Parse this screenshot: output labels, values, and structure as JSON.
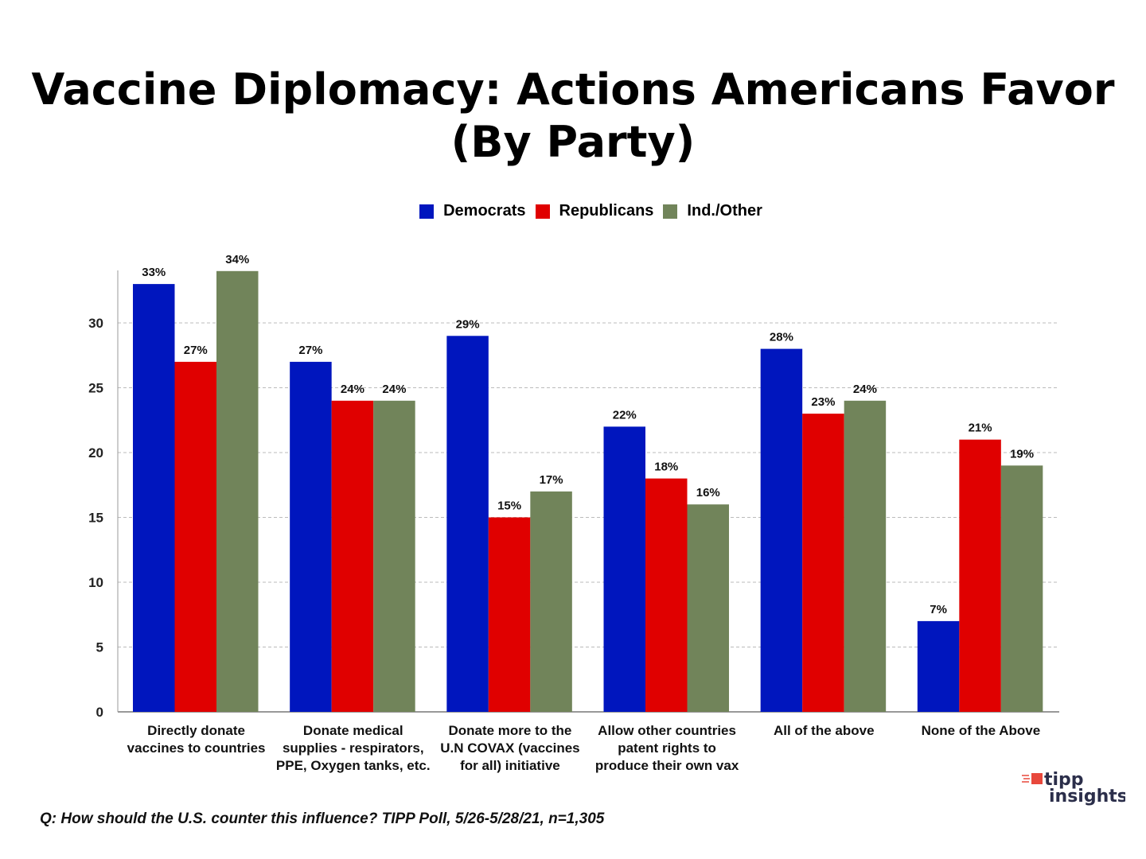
{
  "chart_data": {
    "type": "bar",
    "title": "Vaccine Diplomacy:  Actions Americans Favor",
    "subtitle": "(By Party)",
    "categories": [
      [
        "Directly donate",
        "vaccines to countries"
      ],
      [
        "Donate medical",
        "supplies - respirators,",
        "PPE, Oxygen tanks, etc."
      ],
      [
        "Donate more to the",
        "U.N COVAX (vaccines",
        "for all) initiative"
      ],
      [
        "Allow other countries",
        "patent rights to",
        "produce their own vax"
      ],
      [
        "All of the above"
      ],
      [
        "None of the Above"
      ]
    ],
    "series": [
      {
        "name": "Democrats",
        "color": "#0016BE",
        "values": [
          33,
          27,
          29,
          22,
          28,
          7
        ]
      },
      {
        "name": "Republicans",
        "color": "#E00000",
        "values": [
          27,
          24,
          15,
          18,
          23,
          21
        ]
      },
      {
        "name": "Ind./Other",
        "color": "#71845A",
        "values": [
          34,
          24,
          17,
          16,
          24,
          19
        ]
      }
    ],
    "yticks": [
      0,
      5,
      10,
      15,
      20,
      25,
      30
    ],
    "ylim": [
      0,
      34
    ],
    "value_suffix": "%",
    "grid": true,
    "legend_position": "top-center",
    "xlabel": "",
    "ylabel": ""
  },
  "footer": "Q:  How should the U.S. counter this influence? TIPP Poll, 5/26-5/28/21, n=1,305",
  "logo": {
    "line1": "tipp",
    "line2": "insights"
  }
}
